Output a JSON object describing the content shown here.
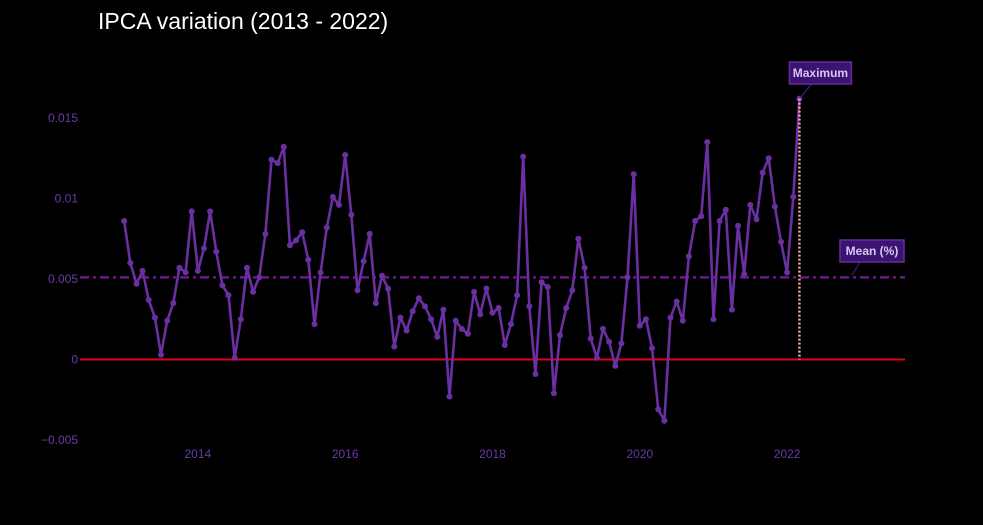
{
  "chart_data": {
    "type": "line",
    "title": "IPCA variation (2013 - 2022)",
    "xlabel": "",
    "ylabel": "",
    "x_start": "2013-01",
    "x_range": [
      2012.4,
      2023.6
    ],
    "ylim": [
      -0.005,
      0.0186
    ],
    "x_ticks": [
      2014,
      2016,
      2018,
      2020,
      2022
    ],
    "x_tick_labels": [
      "2014",
      "2016",
      "2018",
      "2020",
      "2022"
    ],
    "y_ticks": [
      -0.005,
      0,
      0.005,
      0.01,
      0.015
    ],
    "y_tick_labels": [
      "−0.005",
      "0",
      "0.005",
      "0.01",
      "0.015"
    ],
    "grid": false,
    "series": [
      {
        "name": "",
        "color": "#6a2fa0",
        "values": [
          0.0086,
          0.006,
          0.0047,
          0.0055,
          0.0037,
          0.0026,
          0.0003,
          0.0024,
          0.0035,
          0.0057,
          0.0054,
          0.0092,
          0.0055,
          0.0069,
          0.0092,
          0.0067,
          0.0046,
          0.004,
          0.0001,
          0.0025,
          0.0057,
          0.0042,
          0.0051,
          0.0078,
          0.0124,
          0.0122,
          0.0132,
          0.0071,
          0.0074,
          0.0079,
          0.0062,
          0.0022,
          0.0054,
          0.0082,
          0.0101,
          0.0096,
          0.0127,
          0.009,
          0.0043,
          0.0061,
          0.0078,
          0.0035,
          0.0052,
          0.0044,
          0.0008,
          0.0026,
          0.0018,
          0.003,
          0.0038,
          0.0033,
          0.0025,
          0.0014,
          0.0031,
          -0.0023,
          0.0024,
          0.0019,
          0.0016,
          0.0042,
          0.0028,
          0.0044,
          0.0029,
          0.0032,
          0.0009,
          0.0022,
          0.004,
          0.0126,
          0.0033,
          -0.0009,
          0.0048,
          0.0045,
          -0.0021,
          0.0015,
          0.0032,
          0.0043,
          0.0075,
          0.0057,
          0.0013,
          0.0001,
          0.0019,
          0.0011,
          -0.0004,
          0.001,
          0.0051,
          0.0115,
          0.0021,
          0.0025,
          0.0007,
          -0.0031,
          -0.0038,
          0.0026,
          0.0036,
          0.0024,
          0.0064,
          0.0086,
          0.0089,
          0.0135,
          0.0025,
          0.0086,
          0.0093,
          0.0031,
          0.0083,
          0.0053,
          0.0096,
          0.0087,
          0.0116,
          0.0125,
          0.0095,
          0.0073,
          0.0054,
          0.0101,
          0.0162
        ]
      }
    ],
    "reference_lines": [
      {
        "y": 0,
        "color": "#e0001b",
        "style": "solid"
      },
      {
        "y": 0.0051,
        "color": "#6a1a8a",
        "style": "dashdot"
      }
    ],
    "annotations": [
      {
        "text": "Maximum",
        "x_index": 110,
        "y": 0.0162
      },
      {
        "text": "Mean (%)",
        "y": 0.0051
      }
    ]
  }
}
